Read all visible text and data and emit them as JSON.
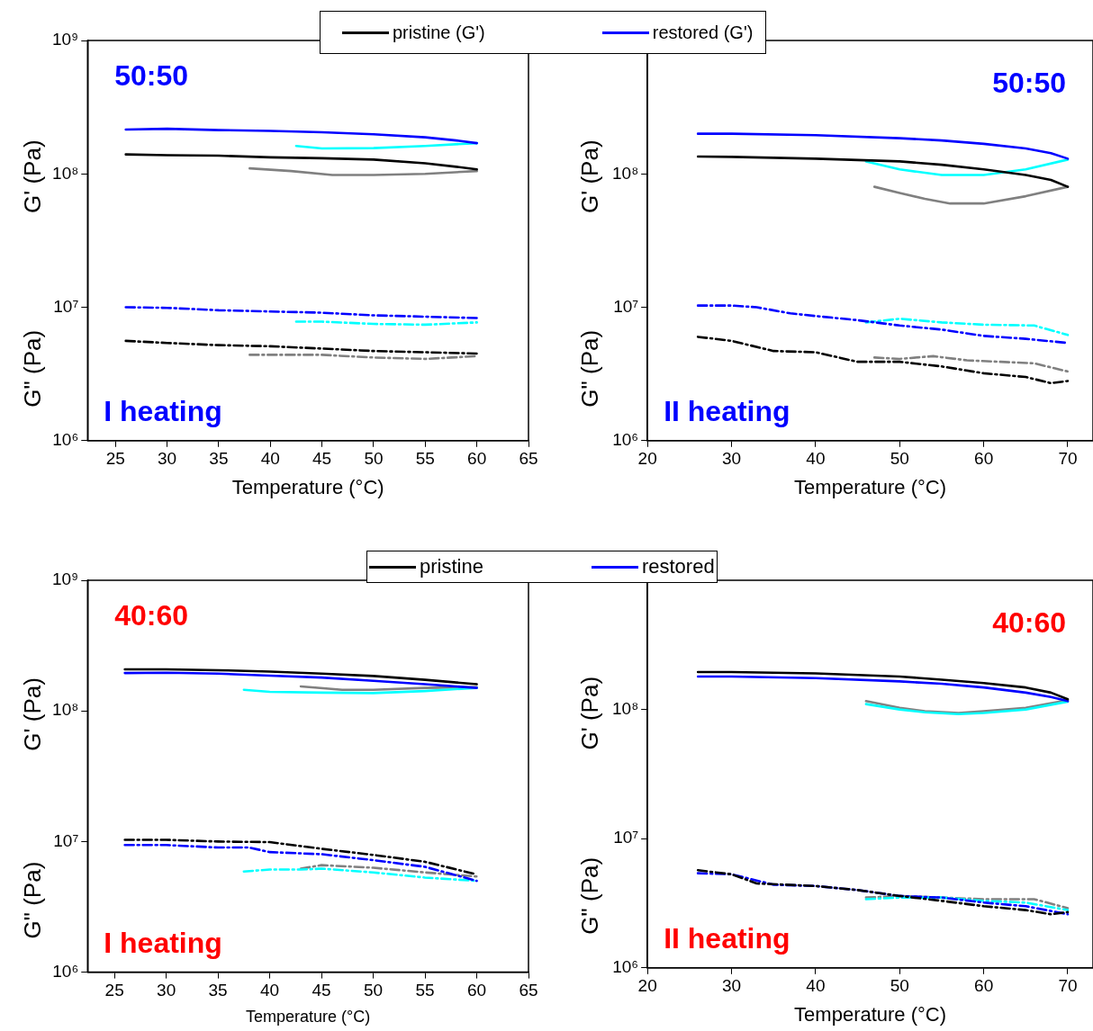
{
  "chart_data": [
    {
      "type": "line",
      "xlabel": "Temperature (°C)",
      "ylabel": "G' (Pa)",
      "annotations": [
        "50:50",
        "I heating",
        "G\" (Pa)"
      ],
      "log": "y",
      "grid": false,
      "legend": "top",
      "marker": "none",
      "xlim": [
        22.3,
        65
      ],
      "xticks": [
        25,
        30,
        35,
        40,
        45,
        50,
        55,
        60,
        65
      ],
      "ylim": [
        1000000,
        1000000000
      ],
      "yticks": [
        {
          "value": 1000000,
          "label": "10⁶"
        },
        {
          "value": 10000000,
          "label": "10⁷"
        },
        {
          "value": 100000000,
          "label": "10⁸"
        },
        {
          "value": 1000000000,
          "label": "10⁹"
        }
      ],
      "series": [
        {
          "name": "pristine (G')",
          "color": "#000000",
          "line_style": "solid",
          "x": [
            26,
            30,
            35,
            40,
            45,
            50,
            55,
            58,
            60
          ],
          "values": [
            140000000,
            138000000,
            137000000,
            133000000,
            131000000,
            128000000,
            120000000,
            113000000,
            108000000
          ]
        },
        {
          "name": "restored (G')",
          "color": "#0000ff",
          "line_style": "solid",
          "x": [
            26,
            30,
            35,
            40,
            45,
            50,
            55,
            58,
            60
          ],
          "values": [
            215000000,
            218000000,
            213000000,
            210000000,
            205000000,
            198000000,
            188000000,
            178000000,
            170000000
          ]
        },
        {
          "color": "#00ffff",
          "line_style": "solid",
          "x": [
            42.5,
            45,
            50,
            55,
            60
          ],
          "values": [
            162000000,
            155000000,
            156000000,
            162000000,
            170000000
          ]
        },
        {
          "color": "#808080",
          "line_style": "solid",
          "x": [
            38,
            42,
            46,
            50,
            55,
            60
          ],
          "values": [
            110000000,
            105000000,
            98000000,
            98000000,
            100000000,
            105000000
          ]
        },
        {
          "color": "#000000",
          "line_style": "dashed",
          "x": [
            26,
            30,
            35,
            40,
            45,
            50,
            55,
            60
          ],
          "values": [
            5600000,
            5400000,
            5200000,
            5100000,
            4900000,
            4700000,
            4600000,
            4500000
          ]
        },
        {
          "color": "#0000ff",
          "line_style": "dashed",
          "x": [
            26,
            30,
            35,
            40,
            45,
            50,
            55,
            60
          ],
          "values": [
            10000000,
            9900000,
            9500000,
            9300000,
            9100000,
            8700000,
            8500000,
            8300000
          ]
        },
        {
          "color": "#00ffff",
          "line_style": "dashed",
          "x": [
            42.5,
            45,
            50,
            55,
            60
          ],
          "values": [
            7800000,
            7800000,
            7500000,
            7400000,
            7700000
          ]
        },
        {
          "color": "#808080",
          "line_style": "dashed",
          "x": [
            38,
            45,
            50,
            55,
            60
          ],
          "values": [
            4400000,
            4400000,
            4200000,
            4100000,
            4300000
          ]
        }
      ]
    },
    {
      "type": "line",
      "xlabel": "Temperature (°C)",
      "ylabel": "G' (Pa)",
      "annotations": [
        "50:50",
        "II heating",
        "G\" (Pa)"
      ],
      "log": "y",
      "grid": false,
      "marker": "none",
      "xlim": [
        20,
        73
      ],
      "xticks": [
        20,
        30,
        40,
        50,
        60,
        70
      ],
      "ylim": [
        1000000,
        1000000000
      ],
      "yticks": [
        {
          "value": 1000000,
          "label": "10⁶"
        },
        {
          "value": 10000000,
          "label": "10⁷"
        },
        {
          "value": 100000000,
          "label": "10⁸"
        },
        {
          "value": 1000000000,
          "label": null
        }
      ],
      "series": [
        {
          "color": "#000000",
          "line_style": "solid",
          "x": [
            26,
            30,
            40,
            50,
            55,
            60,
            65,
            68,
            70
          ],
          "values": [
            135000000,
            134000000,
            130000000,
            124000000,
            117000000,
            108000000,
            98000000,
            90000000,
            80000000
          ]
        },
        {
          "color": "#0000ff",
          "line_style": "solid",
          "x": [
            26,
            30,
            40,
            50,
            55,
            60,
            65,
            68,
            70
          ],
          "values": [
            200000000,
            200000000,
            195000000,
            185000000,
            178000000,
            168000000,
            155000000,
            143000000,
            130000000
          ]
        },
        {
          "color": "#00ffff",
          "line_style": "solid",
          "x": [
            46,
            50,
            55,
            60,
            65,
            70
          ],
          "values": [
            124000000,
            108000000,
            98000000,
            98000000,
            108000000,
            128000000
          ]
        },
        {
          "color": "#808080",
          "line_style": "solid",
          "x": [
            47,
            50,
            53,
            56,
            60,
            65,
            70
          ],
          "values": [
            80000000,
            72000000,
            65000000,
            60000000,
            60000000,
            68000000,
            80000000
          ]
        },
        {
          "color": "#000000",
          "line_style": "dashed",
          "x": [
            26,
            30,
            35,
            40,
            45,
            50,
            55,
            60,
            65,
            68,
            70
          ],
          "values": [
            6000000,
            5600000,
            4700000,
            4600000,
            3900000,
            3900000,
            3600000,
            3200000,
            3000000,
            2700000,
            2800000
          ]
        },
        {
          "color": "#0000ff",
          "line_style": "dashed",
          "x": [
            26,
            30,
            33,
            37,
            40,
            45,
            50,
            55,
            60,
            65,
            70
          ],
          "values": [
            10300000,
            10300000,
            10000000,
            9000000,
            8600000,
            8000000,
            7300000,
            6800000,
            6100000,
            5800000,
            5400000
          ]
        },
        {
          "color": "#00ffff",
          "line_style": "dashed",
          "x": [
            46,
            50,
            55,
            60,
            66,
            70
          ],
          "values": [
            7700000,
            8200000,
            7700000,
            7400000,
            7300000,
            6200000
          ]
        },
        {
          "color": "#808080",
          "line_style": "dashed",
          "x": [
            47,
            50,
            54,
            58,
            62,
            66,
            70
          ],
          "values": [
            4200000,
            4100000,
            4300000,
            4000000,
            3900000,
            3800000,
            3300000
          ]
        }
      ]
    },
    {
      "type": "line",
      "xlabel": "Temperature (°C)",
      "ylabel": "G' (Pa)",
      "annotations": [
        "40:60",
        "I heating",
        "G\" (Pa)"
      ],
      "log": "y",
      "grid": false,
      "legend": "top",
      "marker": "none",
      "xlim": [
        22.4,
        65
      ],
      "xticks": [
        25,
        30,
        35,
        40,
        45,
        50,
        55,
        60,
        65
      ],
      "ylim": [
        1000000,
        1000000000
      ],
      "yticks": [
        {
          "value": 1000000,
          "label": "10⁶"
        },
        {
          "value": 10000000,
          "label": "10⁷"
        },
        {
          "value": 100000000,
          "label": "10⁸"
        },
        {
          "value": 1000000000,
          "label": "10⁹"
        }
      ],
      "series": [
        {
          "name": "pristine",
          "color": "#000000",
          "line_style": "solid",
          "x": [
            26,
            30,
            35,
            40,
            45,
            50,
            55,
            60
          ],
          "values": [
            208000000,
            208000000,
            205000000,
            200000000,
            193000000,
            185000000,
            173000000,
            160000000
          ]
        },
        {
          "name": "restored",
          "color": "#0000ff",
          "line_style": "solid",
          "x": [
            26,
            30,
            35,
            40,
            45,
            50,
            55,
            60
          ],
          "values": [
            195000000,
            196000000,
            193000000,
            186000000,
            180000000,
            170000000,
            160000000,
            150000000
          ]
        },
        {
          "color": "#00ffff",
          "line_style": "solid",
          "x": [
            37.5,
            40,
            45,
            50,
            55,
            60
          ],
          "values": [
            145000000,
            140000000,
            138000000,
            137000000,
            142000000,
            150000000
          ]
        },
        {
          "color": "#808080",
          "line_style": "solid",
          "x": [
            43,
            47,
            50,
            55,
            60
          ],
          "values": [
            154000000,
            145000000,
            145000000,
            150000000,
            152000000
          ]
        },
        {
          "color": "#000000",
          "line_style": "dashed",
          "x": [
            26,
            30,
            35,
            40,
            45,
            50,
            55,
            60
          ],
          "values": [
            10300000,
            10300000,
            10000000,
            9900000,
            8800000,
            7900000,
            7000000,
            5600000
          ]
        },
        {
          "color": "#0000ff",
          "line_style": "dashed",
          "x": [
            26,
            30,
            35,
            38,
            40,
            45,
            50,
            55,
            60
          ],
          "values": [
            9400000,
            9400000,
            9000000,
            9000000,
            8300000,
            8000000,
            7200000,
            6400000,
            5000000
          ]
        },
        {
          "color": "#00ffff",
          "line_style": "dashed",
          "x": [
            37.5,
            40,
            43,
            45,
            50,
            55,
            60
          ],
          "values": [
            5900000,
            6100000,
            6100000,
            6200000,
            5800000,
            5300000,
            5000000
          ]
        },
        {
          "color": "#808080",
          "line_style": "dashed",
          "x": [
            43,
            45,
            50,
            55,
            60
          ],
          "values": [
            6200000,
            6600000,
            6300000,
            5800000,
            5400000
          ]
        }
      ]
    },
    {
      "type": "line",
      "xlabel": "Temperature (°C)",
      "ylabel": "G' (Pa)",
      "annotations": [
        "40:60",
        "II heating",
        "G\" (Pa)"
      ],
      "log": "y",
      "grid": false,
      "marker": "none",
      "xlim": [
        20,
        73
      ],
      "xticks": [
        20,
        30,
        40,
        50,
        60,
        70
      ],
      "ylim": [
        1000000,
        1000000000
      ],
      "yticks": [
        {
          "value": 1000000,
          "label": "10⁶"
        },
        {
          "value": 10000000,
          "label": "10⁷"
        },
        {
          "value": 100000000,
          "label": "10⁸"
        },
        {
          "value": 1000000000,
          "label": null
        }
      ],
      "series": [
        {
          "color": "#000000",
          "line_style": "solid",
          "x": [
            26,
            30,
            40,
            50,
            55,
            60,
            65,
            68,
            70
          ],
          "values": [
            195000000,
            195000000,
            190000000,
            180000000,
            170000000,
            160000000,
            148000000,
            135000000,
            120000000
          ]
        },
        {
          "color": "#0000ff",
          "line_style": "solid",
          "x": [
            26,
            30,
            40,
            50,
            55,
            60,
            65,
            68,
            70
          ],
          "values": [
            180000000,
            180000000,
            175000000,
            165000000,
            158000000,
            148000000,
            135000000,
            125000000,
            116000000
          ]
        },
        {
          "color": "#00ffff",
          "line_style": "solid",
          "x": [
            46,
            50,
            53,
            57,
            60,
            65,
            70
          ],
          "values": [
            110000000,
            100000000,
            95000000,
            92000000,
            94000000,
            100000000,
            115000000
          ]
        },
        {
          "color": "#808080",
          "line_style": "solid",
          "x": [
            46,
            50,
            53,
            57,
            60,
            65,
            70
          ],
          "values": [
            116000000,
            103000000,
            97000000,
            94000000,
            97000000,
            103000000,
            118000000
          ]
        },
        {
          "color": "#000000",
          "line_style": "dashed",
          "x": [
            26,
            30,
            33,
            40,
            45,
            50,
            55,
            60,
            65,
            68,
            70
          ],
          "values": [
            5700000,
            5300000,
            4500000,
            4300000,
            4000000,
            3600000,
            3300000,
            3000000,
            2800000,
            2600000,
            2700000
          ]
        },
        {
          "color": "#0000ff",
          "line_style": "dashed",
          "x": [
            26,
            30,
            35,
            40,
            45,
            50,
            55,
            60,
            65,
            70
          ],
          "values": [
            5400000,
            5300000,
            4400000,
            4300000,
            4000000,
            3600000,
            3500000,
            3200000,
            3000000,
            2600000
          ]
        },
        {
          "color": "#00ffff",
          "line_style": "dashed",
          "x": [
            46,
            50,
            55,
            60,
            65,
            70
          ],
          "values": [
            3400000,
            3500000,
            3500000,
            3300000,
            3200000,
            2800000
          ]
        },
        {
          "color": "#808080",
          "line_style": "dashed",
          "x": [
            46,
            50,
            55,
            60,
            66,
            70
          ],
          "values": [
            3500000,
            3600000,
            3500000,
            3400000,
            3400000,
            2900000
          ]
        }
      ]
    }
  ]
}
